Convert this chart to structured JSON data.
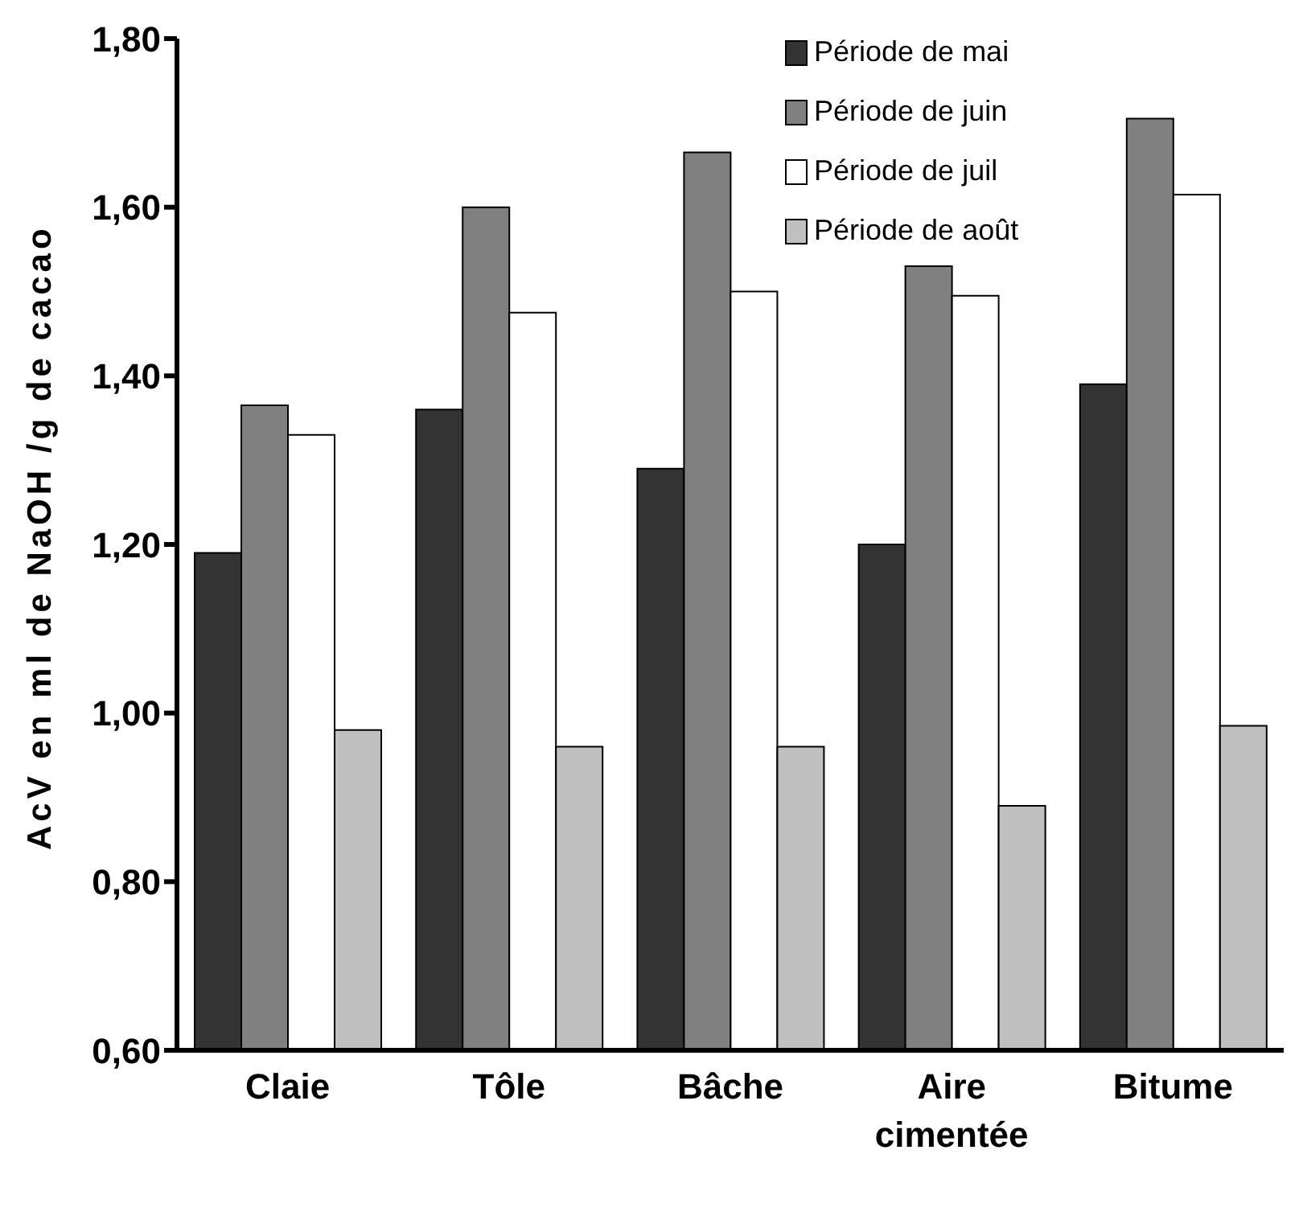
{
  "chart_data": {
    "type": "bar",
    "ylabel": "AcV en ml de NaOH /g de cacao",
    "categories": [
      "Claie",
      "Tôle",
      "Bâche",
      "Aire cimentée",
      "Bitume"
    ],
    "series": [
      {
        "name": "Période de mai",
        "color": "#333333",
        "values": [
          1.19,
          1.36,
          1.29,
          1.2,
          1.39
        ]
      },
      {
        "name": "Période de juin",
        "color": "#808080",
        "values": [
          1.365,
          1.6,
          1.665,
          1.53,
          1.705
        ]
      },
      {
        "name": "Période de juil",
        "color": "#ffffff",
        "values": [
          1.33,
          1.475,
          1.5,
          1.495,
          1.615
        ]
      },
      {
        "name": "Période de août",
        "color": "#c0c0c0",
        "values": [
          0.98,
          0.96,
          0.96,
          0.89,
          0.985
        ]
      }
    ],
    "ylim": [
      0.6,
      1.8
    ],
    "yticks": [
      {
        "value": 0.6,
        "label": "0,60"
      },
      {
        "value": 0.8,
        "label": "0,80"
      },
      {
        "value": 1.0,
        "label": "1,00"
      },
      {
        "value": 1.2,
        "label": "1,20"
      },
      {
        "value": 1.4,
        "label": "1,40"
      },
      {
        "value": 1.6,
        "label": "1,60"
      },
      {
        "value": 1.8,
        "label": "1,80"
      }
    ],
    "grid": false,
    "legend": "top right"
  }
}
